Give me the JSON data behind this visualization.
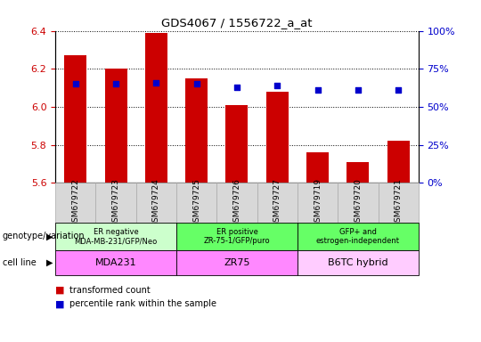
{
  "title": "GDS4067 / 1556722_a_at",
  "samples": [
    "GSM679722",
    "GSM679723",
    "GSM679724",
    "GSM679725",
    "GSM679726",
    "GSM679727",
    "GSM679719",
    "GSM679720",
    "GSM679721"
  ],
  "transformed_counts": [
    6.27,
    6.2,
    6.39,
    6.15,
    6.01,
    6.08,
    5.76,
    5.71,
    5.82
  ],
  "percentile_ranks": [
    65,
    65,
    66,
    65,
    63,
    64,
    61,
    61,
    61
  ],
  "ylim": [
    5.6,
    6.4
  ],
  "y2lim": [
    0,
    100
  ],
  "yticks": [
    5.6,
    5.8,
    6.0,
    6.2,
    6.4
  ],
  "y2ticks": [
    0,
    25,
    50,
    75,
    100
  ],
  "bar_color": "#cc0000",
  "dot_color": "#0000cc",
  "bar_bottom": 5.6,
  "groups": [
    {
      "label": "ER negative\nMDA-MB-231/GFP/Neo",
      "start": 0,
      "end": 3,
      "color": "#ccffcc"
    },
    {
      "label": "ER positive\nZR-75-1/GFP/puro",
      "start": 3,
      "end": 6,
      "color": "#66ff66"
    },
    {
      "label": "GFP+ and\nestrogen-independent",
      "start": 6,
      "end": 9,
      "color": "#66ff66"
    }
  ],
  "cell_lines": [
    {
      "label": "MDA231",
      "start": 0,
      "end": 3,
      "color": "#ff88ff"
    },
    {
      "label": "ZR75",
      "start": 3,
      "end": 6,
      "color": "#ff88ff"
    },
    {
      "label": "B6TC hybrid",
      "start": 6,
      "end": 9,
      "color": "#ffccff"
    }
  ],
  "genotype_label": "genotype/variation",
  "cell_line_label": "cell line",
  "legend_items": [
    {
      "label": "transformed count",
      "color": "#cc0000"
    },
    {
      "label": "percentile rank within the sample",
      "color": "#0000cc"
    }
  ],
  "grid_color": "#000000",
  "background_color": "#ffffff",
  "tick_color_left": "#cc0000",
  "tick_color_right": "#0000cc",
  "sample_box_color": "#d8d8d8",
  "sample_box_edge": "#aaaaaa"
}
